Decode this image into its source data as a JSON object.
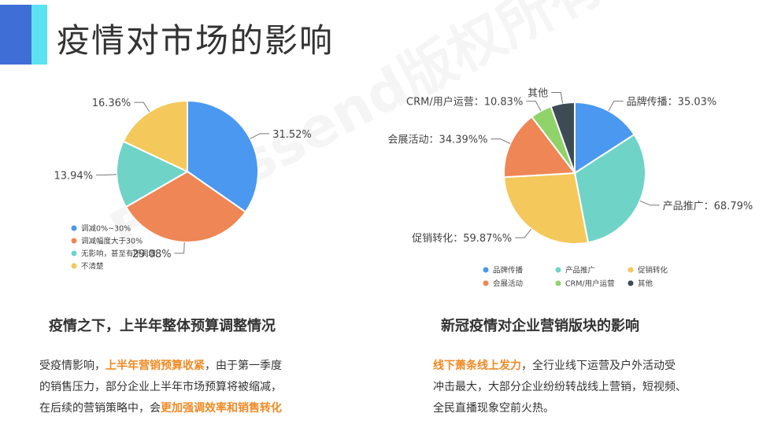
{
  "page": {
    "title": "疫情对市场的影响",
    "watermark": "Focussend版权所有"
  },
  "colors": {
    "blue": "#4a98f0",
    "orange": "#ef8655",
    "teal": "#6fd3c8",
    "yellow": "#f4c85a",
    "green": "#8fd36a",
    "dark": "#3e4b55",
    "highlight": "#f08a24"
  },
  "left": {
    "subtitle": "疫情之下，上半年整体预算调整情况",
    "paragraph": {
      "l1_pre": "受疫情影响，",
      "l1_hl": "上半年营销预算收紧",
      "l1_post": "，由于第一季度",
      "l2": "的销售压力，部分企业上半年市场预算将被缩减，",
      "l3_pre": "在后续的营销策略中，会",
      "l3_hl": "更加强调效率和销售转化"
    }
  },
  "right": {
    "subtitle": "新冠疫情对企业营销版块的影响",
    "paragraph": {
      "l1_hl": "线下萧条线上发力",
      "l1_post": "，全行业线下运营及户外活动受",
      "l2": "冲击最大，大部分企业纷纷转战线上营销，短视频、",
      "l3": "全民直播现象空前火热。"
    }
  },
  "chart_data": [
    {
      "type": "pie",
      "labels": [
        "调减0%~30%",
        "调减幅度大于30%",
        "无影响，甚至有所调增",
        "不清楚"
      ],
      "values": [
        31.52,
        29.08,
        13.94,
        16.36
      ],
      "value_labels": [
        "31.52%",
        "29.08%",
        "13.94%",
        "16.36%"
      ],
      "colors": [
        "#4a98f0",
        "#ef8655",
        "#6fd3c8",
        "#f4c85a"
      ],
      "legend": "bottom-left"
    },
    {
      "type": "pie",
      "labels": [
        "品牌传播",
        "产品推广",
        "促销转化",
        "会展活动",
        "CRM/用户运营",
        "其他"
      ],
      "values": [
        35.03,
        68.79,
        59.87,
        34.39,
        10.83,
        12.1
      ],
      "value_labels": [
        "品牌传播：35.03%",
        "产品推广：68.79%",
        "促销转化：59.87%%",
        "会展活动：34.39%%",
        "CRM/用户运营：10.83%",
        "其他"
      ],
      "colors": [
        "#4a98f0",
        "#6fd3c8",
        "#f4c85a",
        "#ef8655",
        "#8fd36a",
        "#3e4b55"
      ],
      "legend": "bottom"
    }
  ]
}
